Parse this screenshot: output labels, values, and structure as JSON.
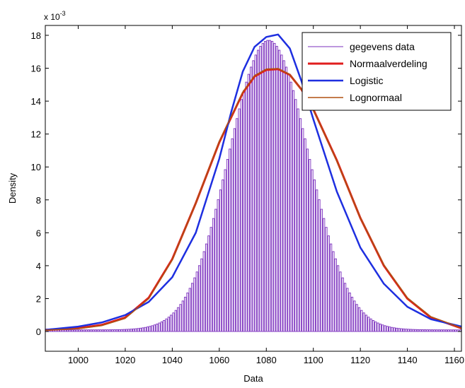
{
  "chart_data": {
    "type": "histogram-with-fits",
    "xlabel": "Data",
    "ylabel": "Density",
    "y_exponent_label": "x 10",
    "y_exponent_power": "-3",
    "xlim": [
      986,
      1163
    ],
    "ylim": [
      -0.0012,
      0.0186
    ],
    "x_ticks": [
      1000,
      1020,
      1040,
      1060,
      1080,
      1100,
      1120,
      1140,
      1160
    ],
    "x_tick_labels": [
      "1000",
      "1020",
      "1040",
      "1060",
      "1080",
      "1100",
      "1120",
      "1140",
      "1160"
    ],
    "y_ticks": [
      0,
      0.002,
      0.004,
      0.006,
      0.008,
      0.01,
      0.012,
      0.014,
      0.016,
      0.018
    ],
    "y_tick_labels": [
      "0",
      "2",
      "4",
      "6",
      "8",
      "10",
      "12",
      "14",
      "16",
      "18"
    ],
    "grid": false,
    "legend_position": "top-right",
    "histogram": {
      "name": "gegevens data",
      "color": "#7B2FBE",
      "bin_width": 1,
      "bins_from": 986,
      "bins_to": 1163,
      "peak": 0.0176,
      "peak_at": 1081,
      "spread": 17,
      "baseline": 0.0001
    },
    "series": [
      {
        "name": "Normaalverdeling",
        "color": "#E01E1E",
        "x": [
          986,
          1000,
          1010,
          1020,
          1030,
          1040,
          1050,
          1060,
          1070,
          1075,
          1080,
          1085,
          1090,
          1095,
          1100,
          1110,
          1120,
          1130,
          1140,
          1150,
          1163
        ],
        "y": [
          0.0001,
          0.0002,
          0.0004,
          0.00085,
          0.00205,
          0.0044,
          0.0078,
          0.0115,
          0.0145,
          0.0155,
          0.0159,
          0.01595,
          0.0156,
          0.0147,
          0.0135,
          0.0104,
          0.0069,
          0.004,
          0.002,
          0.00085,
          0.0002
        ]
      },
      {
        "name": "Logistic",
        "color": "#1E2FE0",
        "x": [
          986,
          1000,
          1010,
          1020,
          1030,
          1040,
          1050,
          1060,
          1065,
          1070,
          1075,
          1080,
          1085,
          1090,
          1095,
          1100,
          1110,
          1120,
          1130,
          1140,
          1150,
          1163
        ],
        "y": [
          0.0001,
          0.0003,
          0.00055,
          0.001,
          0.0018,
          0.0033,
          0.006,
          0.0105,
          0.0133,
          0.0158,
          0.0173,
          0.0179,
          0.01805,
          0.0172,
          0.0152,
          0.0129,
          0.0085,
          0.0051,
          0.0029,
          0.0015,
          0.00075,
          0.0003
        ]
      },
      {
        "name": "Lognormaal",
        "color": "#B05010",
        "x": [
          986,
          1000,
          1010,
          1020,
          1030,
          1040,
          1050,
          1060,
          1070,
          1075,
          1080,
          1085,
          1090,
          1095,
          1100,
          1110,
          1120,
          1130,
          1140,
          1150,
          1163
        ],
        "y": [
          8e-05,
          0.00017,
          0.00036,
          0.0008,
          0.002,
          0.00435,
          0.0078,
          0.01155,
          0.01455,
          0.01555,
          0.01595,
          0.01598,
          0.01562,
          0.0147,
          0.01348,
          0.01035,
          0.0069,
          0.00405,
          0.00205,
          0.0009,
          0.00022
        ]
      }
    ]
  }
}
